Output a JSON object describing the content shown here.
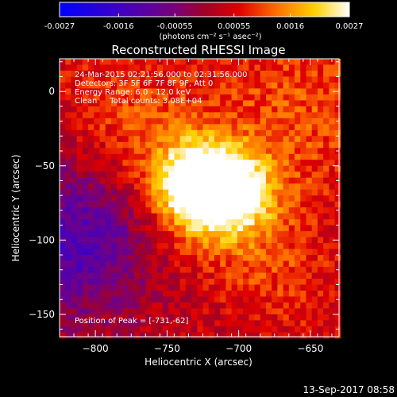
{
  "chart_data": {
    "type": "heatmap",
    "title": "Reconstructed RHESSI Image",
    "xlabel": "Heliocentric X (arcsec)",
    "ylabel": "Heliocentric Y (arcsec)",
    "xlim": [
      -825,
      -630
    ],
    "ylim": [
      -165,
      22
    ],
    "x_ticks": [
      -800,
      -750,
      -700,
      -650
    ],
    "y_ticks": [
      0,
      -50,
      -100,
      -150
    ],
    "colorbar": {
      "range": [
        -0.0027,
        0.0027
      ],
      "ticks": [
        "-0.0027",
        "-0.0016",
        "-0.00055",
        "0.00055",
        "0.0016",
        "0.0027"
      ],
      "units": "(photons cm⁻² s⁻¹ asec⁻²)",
      "colormap": "blue-purple-red-yellow-white"
    },
    "annotations": {
      "time_range": "24-Mar-2015 02:21:56.000 to 02:31:56.000",
      "detectors": "Detectors: 3F 5F 6F 7F 8F 9F, Att 0",
      "energy": "Energy Range: 6.0 - 12.0 keV",
      "clean": "Clean     Total counts: 3.08E+04",
      "peak": "Position of Peak = [-731,-62]"
    },
    "sources": [
      {
        "x": -731,
        "y": -62,
        "amp": 0.0027
      },
      {
        "x": -704,
        "y": -64,
        "amp": 0.0019
      }
    ],
    "peak": {
      "x": -731,
      "y": -62
    }
  },
  "footer": {
    "timestamp": "13-Sep-2017 08:58"
  }
}
